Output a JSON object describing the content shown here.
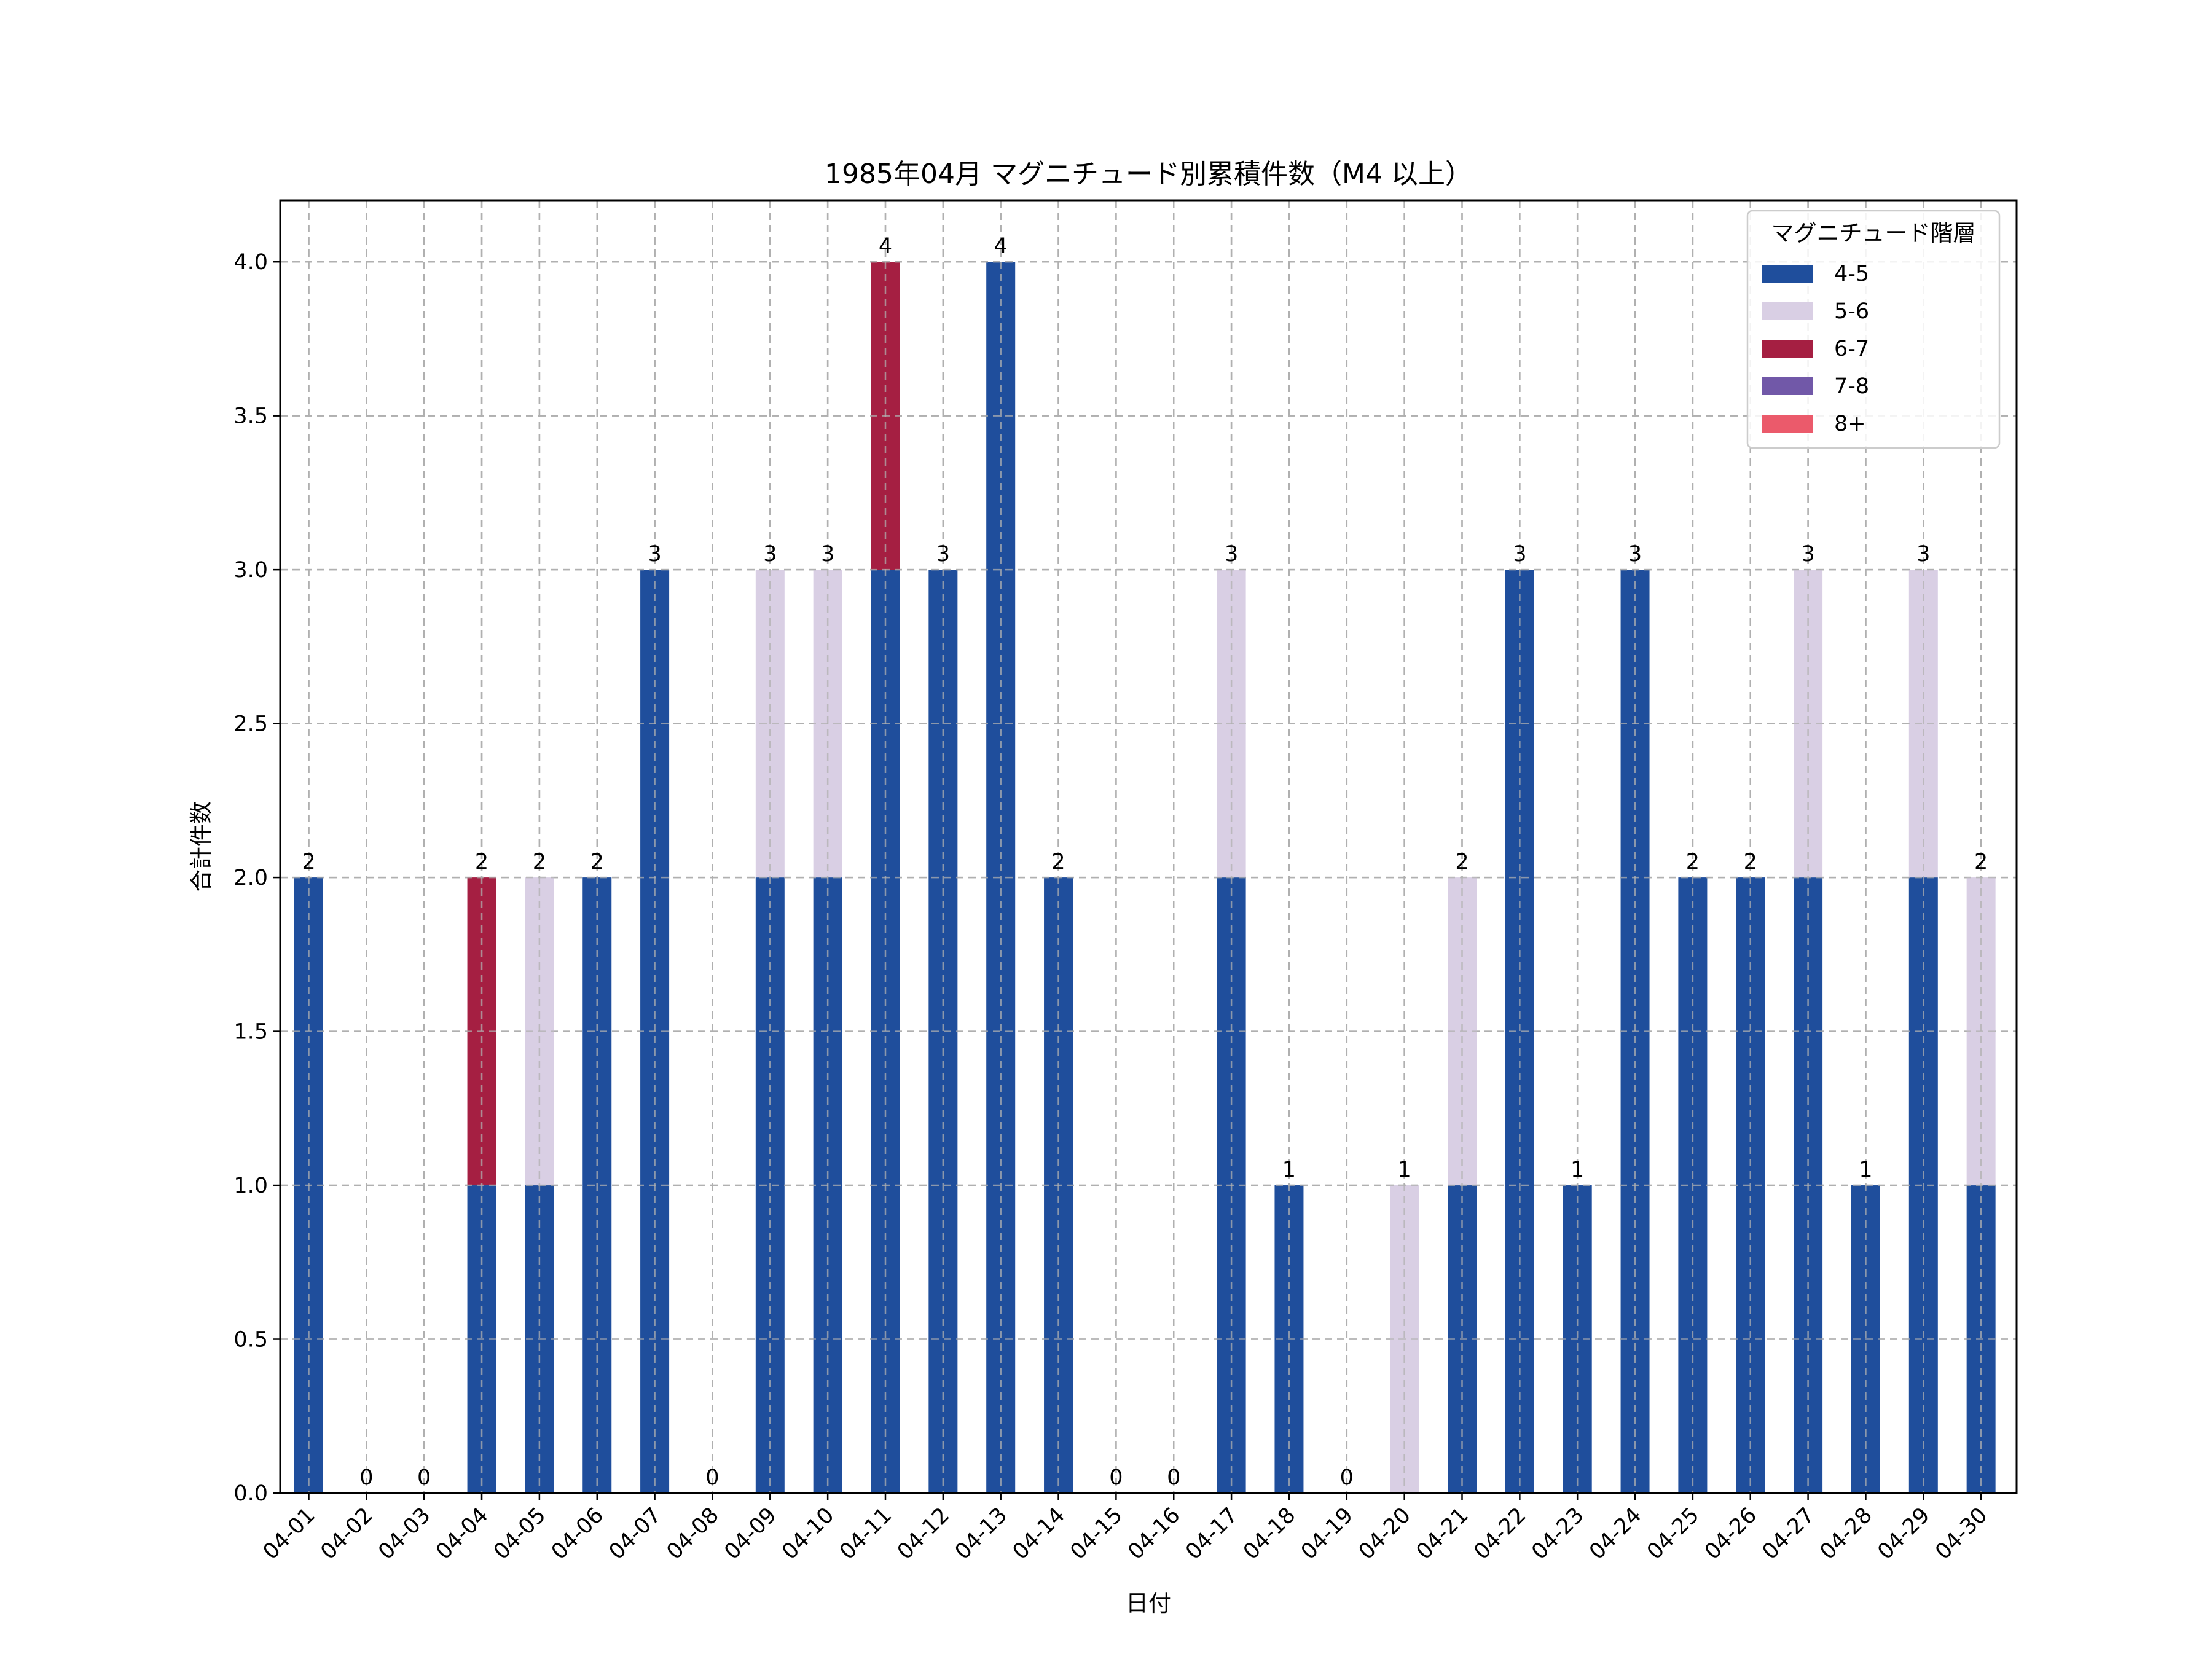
{
  "chart_data": {
    "type": "bar",
    "stacked": true,
    "title": "1985年04月 マグニチュード別累積件数（M4 以上）",
    "xlabel": "日付",
    "ylabel": "合計件数",
    "ylim": [
      0,
      4.2
    ],
    "yticks": [
      "0.0",
      "0.5",
      "1.0",
      "1.5",
      "2.0",
      "2.5",
      "3.0",
      "3.5",
      "4.0"
    ],
    "grid": true,
    "legend_title": "マグニチュード階層",
    "legend_position": "top-right",
    "categories": [
      "04-01",
      "04-02",
      "04-03",
      "04-04",
      "04-05",
      "04-06",
      "04-07",
      "04-08",
      "04-09",
      "04-10",
      "04-11",
      "04-12",
      "04-13",
      "04-14",
      "04-15",
      "04-16",
      "04-17",
      "04-18",
      "04-19",
      "04-20",
      "04-21",
      "04-22",
      "04-23",
      "04-24",
      "04-25",
      "04-26",
      "04-27",
      "04-28",
      "04-29",
      "04-30"
    ],
    "series": [
      {
        "name": "4-5",
        "color": "#1f4e9c",
        "values": [
          2,
          0,
          0,
          1,
          1,
          2,
          3,
          0,
          2,
          2,
          3,
          3,
          4,
          2,
          0,
          0,
          2,
          1,
          0,
          0,
          1,
          3,
          1,
          3,
          2,
          2,
          2,
          1,
          2,
          1
        ]
      },
      {
        "name": "5-6",
        "color": "#d9cfe4",
        "values": [
          0,
          0,
          0,
          0,
          1,
          0,
          0,
          0,
          1,
          1,
          0,
          0,
          0,
          0,
          0,
          0,
          1,
          0,
          0,
          1,
          1,
          0,
          0,
          0,
          0,
          0,
          1,
          0,
          1,
          1
        ]
      },
      {
        "name": "6-7",
        "color": "#a51f42",
        "values": [
          0,
          0,
          0,
          1,
          0,
          0,
          0,
          0,
          0,
          0,
          1,
          0,
          0,
          0,
          0,
          0,
          0,
          0,
          0,
          0,
          0,
          0,
          0,
          0,
          0,
          0,
          0,
          0,
          0,
          0
        ]
      },
      {
        "name": "7-8",
        "color": "#7158a8",
        "values": [
          0,
          0,
          0,
          0,
          0,
          0,
          0,
          0,
          0,
          0,
          0,
          0,
          0,
          0,
          0,
          0,
          0,
          0,
          0,
          0,
          0,
          0,
          0,
          0,
          0,
          0,
          0,
          0,
          0,
          0
        ]
      },
      {
        "name": "8+",
        "color": "#eb5a6b",
        "values": [
          0,
          0,
          0,
          0,
          0,
          0,
          0,
          0,
          0,
          0,
          0,
          0,
          0,
          0,
          0,
          0,
          0,
          0,
          0,
          0,
          0,
          0,
          0,
          0,
          0,
          0,
          0,
          0,
          0,
          0
        ]
      }
    ],
    "totals": [
      "2",
      "0",
      "0",
      "2",
      "2",
      "2",
      "3",
      "0",
      "3",
      "3",
      "4",
      "3",
      "4",
      "2",
      "0",
      "0",
      "3",
      "1",
      "0",
      "1",
      "2",
      "3",
      "1",
      "3",
      "2",
      "2",
      "3",
      "1",
      "3",
      "2"
    ]
  }
}
